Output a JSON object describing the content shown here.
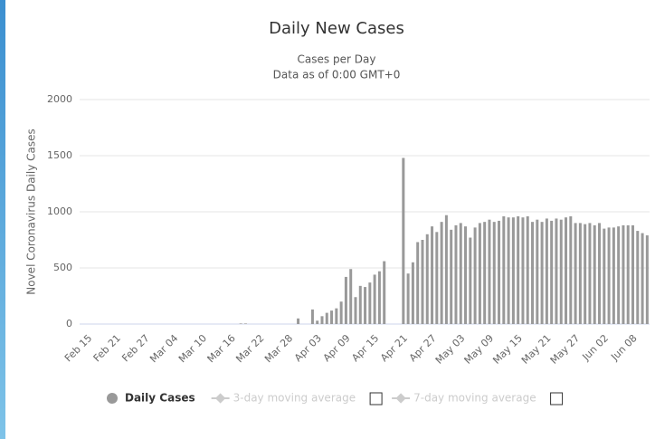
{
  "chart_data": {
    "type": "bar",
    "title": "Daily New Cases",
    "subtitle": "Cases per Day",
    "note": "Data as of 0:00 GMT+0",
    "y_label": "Novel Coronavirus Daily Cases",
    "categories": [
      "Feb 15",
      null,
      null,
      null,
      null,
      null,
      "Feb 21",
      null,
      null,
      null,
      null,
      null,
      "Feb 27",
      null,
      null,
      null,
      null,
      null,
      "Mar 04",
      null,
      null,
      null,
      null,
      null,
      "Mar 10",
      null,
      null,
      null,
      null,
      null,
      "Mar 16",
      null,
      null,
      null,
      null,
      null,
      "Mar 22",
      null,
      null,
      null,
      null,
      null,
      "Mar 28",
      null,
      null,
      null,
      null,
      null,
      "Apr 03",
      null,
      null,
      null,
      null,
      null,
      "Apr 09",
      null,
      null,
      null,
      null,
      null,
      "Apr 15",
      null,
      null,
      null,
      null,
      null,
      "Apr 21",
      null,
      null,
      null,
      null,
      null,
      "Apr 27",
      null,
      null,
      null,
      null,
      null,
      "May 03",
      null,
      null,
      null,
      null,
      null,
      "May 09",
      null,
      null,
      null,
      null,
      null,
      "May 15",
      null,
      null,
      null,
      null,
      null,
      "May 21",
      null,
      null,
      null,
      null,
      null,
      "May 27",
      null,
      null,
      null,
      null,
      null,
      "Jun 02",
      null,
      null,
      null,
      null,
      null,
      "Jun 08",
      null,
      null,
      null
    ],
    "series": [
      {
        "name": "Daily Cases",
        "color": "#999999",
        "values": [
          0,
          0,
          0,
          0,
          0,
          0,
          0,
          0,
          0,
          0,
          0,
          0,
          0,
          0,
          0,
          0,
          0,
          0,
          0,
          0,
          0,
          0,
          0,
          0,
          0,
          0,
          0,
          0,
          0,
          0,
          0,
          0,
          5,
          5,
          0,
          0,
          0,
          0,
          0,
          0,
          0,
          0,
          0,
          0,
          50,
          0,
          0,
          130,
          30,
          70,
          100,
          120,
          140,
          200,
          420,
          490,
          240,
          340,
          330,
          370,
          440,
          470,
          560,
          0,
          0,
          0,
          1480,
          450,
          550,
          730,
          750,
          800,
          870,
          820,
          910,
          970,
          840,
          880,
          900,
          870,
          770,
          860,
          900,
          910,
          930,
          910,
          920,
          960,
          950,
          950,
          960,
          950,
          960,
          910,
          930,
          910,
          940,
          920,
          940,
          930,
          950,
          960,
          900,
          900,
          890,
          900,
          880,
          900,
          850,
          860,
          860,
          870,
          880,
          880,
          880,
          830,
          810,
          790
        ]
      }
    ],
    "legend_items": [
      {
        "name": "Daily Cases",
        "color": "#999999",
        "active": true
      },
      {
        "name": "3-day moving average",
        "color": "#cccccc",
        "active": false
      },
      {
        "name": "7-day moving average",
        "color": "#cccccc",
        "active": false
      }
    ],
    "ylim": [
      0,
      2000
    ],
    "yticks": [
      0,
      500,
      1000,
      1500,
      2000
    ],
    "grid": true
  }
}
